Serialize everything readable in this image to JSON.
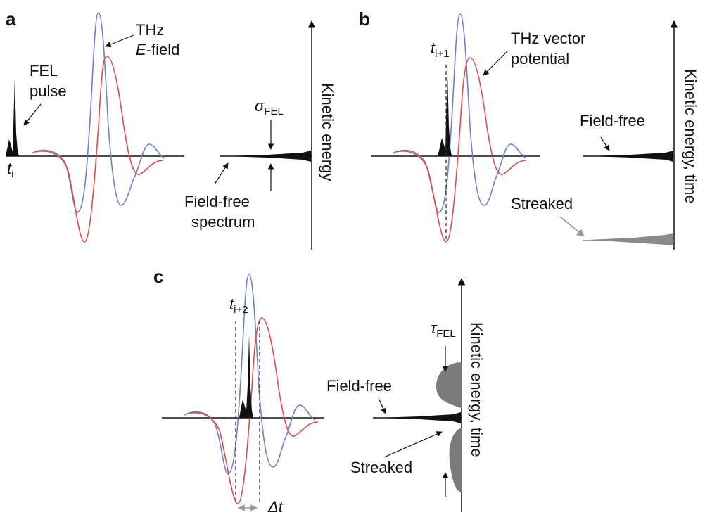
{
  "colors": {
    "thz_e_field": "#6f7fd0",
    "thz_vector_potential": "#e8474a",
    "fel_pulse": "#111111",
    "streaked": "#7a7a7a",
    "axis": "#111111",
    "dashed": "#333333"
  },
  "panel_a": {
    "letter": "a",
    "fel_pulse_label_1": "FEL",
    "fel_pulse_label_2": "pulse",
    "thz_label_1": "THz",
    "thz_label_2_italic": "E",
    "thz_label_2_rest": "-field",
    "time_label": "t",
    "time_sub": "i",
    "sigma_symbol": "σ",
    "sigma_sub": "FEL",
    "field_free_1": "Field-free",
    "field_free_2": "spectrum",
    "axis_label": "Kinetic energy"
  },
  "panel_b": {
    "letter": "b",
    "time_label": "t",
    "time_sub": "i+1",
    "thz_label_1": "THz vector",
    "thz_label_2": "potential",
    "field_free": "Field-free",
    "streaked": "Streaked",
    "axis_label": "Kinetic energy, time"
  },
  "panel_c": {
    "letter": "c",
    "time_label": "t",
    "time_sub": "i+2",
    "tau_symbol": "τ",
    "tau_sub": "FEL",
    "field_free": "Field-free",
    "streaked": "Streaked",
    "delta_t": "Δt",
    "axis_label": "Kinetic energy, time"
  }
}
